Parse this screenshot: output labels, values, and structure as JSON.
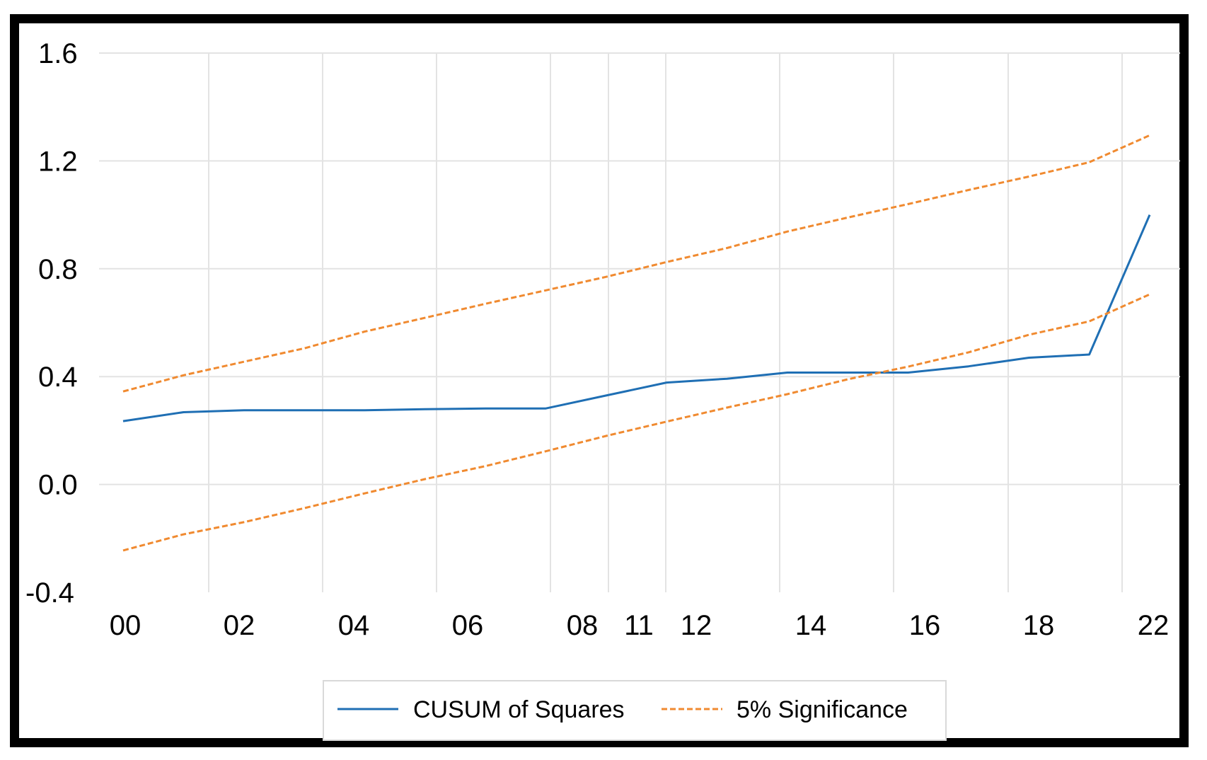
{
  "chart_data": {
    "type": "line",
    "title": "",
    "xlabel": "",
    "ylabel": "",
    "categories": [
      "00",
      "02",
      "04",
      "06",
      "08",
      "11",
      "12",
      "14",
      "16",
      "18",
      "22"
    ],
    "y_ticks": [
      "1.6",
      "1.2",
      "0.8",
      "0.4",
      "0.0",
      "-0.4"
    ],
    "ylim": [
      -0.4,
      1.6
    ],
    "grid": true,
    "legend_position": "bottom",
    "series": [
      {
        "name": "CUSUM of Squares",
        "color": "#1f6fb4",
        "style": "solid",
        "points": [
          [
            0,
            0.235
          ],
          [
            1,
            0.268
          ],
          [
            2,
            0.275
          ],
          [
            3,
            0.275
          ],
          [
            4,
            0.275
          ],
          [
            5,
            0.279
          ],
          [
            6,
            0.282
          ],
          [
            7,
            0.282
          ],
          [
            8,
            0.33
          ],
          [
            9,
            0.378
          ],
          [
            10,
            0.392
          ],
          [
            11,
            0.415
          ],
          [
            12,
            0.415
          ],
          [
            13,
            0.415
          ],
          [
            14,
            0.438
          ],
          [
            15,
            0.47
          ],
          [
            16,
            0.482
          ],
          [
            17,
            1.0
          ]
        ]
      },
      {
        "name": "5% Significance",
        "color": "#f08a30",
        "style": "dashed",
        "points": [
          [
            0,
            0.345
          ],
          [
            1,
            0.405
          ],
          [
            2,
            0.455
          ],
          [
            3,
            0.505
          ],
          [
            4,
            0.567
          ],
          [
            5,
            0.618
          ],
          [
            6,
            0.67
          ],
          [
            7,
            0.72
          ],
          [
            8,
            0.77
          ],
          [
            9,
            0.825
          ],
          [
            10,
            0.877
          ],
          [
            11,
            0.938
          ],
          [
            12,
            0.99
          ],
          [
            13,
            1.04
          ],
          [
            14,
            1.092
          ],
          [
            15,
            1.142
          ],
          [
            16,
            1.195
          ],
          [
            17,
            1.295
          ]
        ]
      },
      {
        "name": "",
        "color": "#f08a30",
        "style": "dashed",
        "points": [
          [
            0,
            -0.245
          ],
          [
            1,
            -0.185
          ],
          [
            2,
            -0.14
          ],
          [
            3,
            -0.088
          ],
          [
            4,
            -0.033
          ],
          [
            5,
            0.02
          ],
          [
            6,
            0.068
          ],
          [
            7,
            0.123
          ],
          [
            8,
            0.18
          ],
          [
            9,
            0.233
          ],
          [
            10,
            0.285
          ],
          [
            11,
            0.335
          ],
          [
            12,
            0.39
          ],
          [
            13,
            0.437
          ],
          [
            14,
            0.49
          ],
          [
            15,
            0.555
          ],
          [
            16,
            0.605
          ],
          [
            17,
            0.705
          ]
        ]
      }
    ],
    "legend": [
      {
        "label": "CUSUM of Squares",
        "color": "#1f6fb4",
        "style": "solid"
      },
      {
        "label": "5% Significance",
        "color": "#f08a30",
        "style": "dashed"
      }
    ]
  }
}
